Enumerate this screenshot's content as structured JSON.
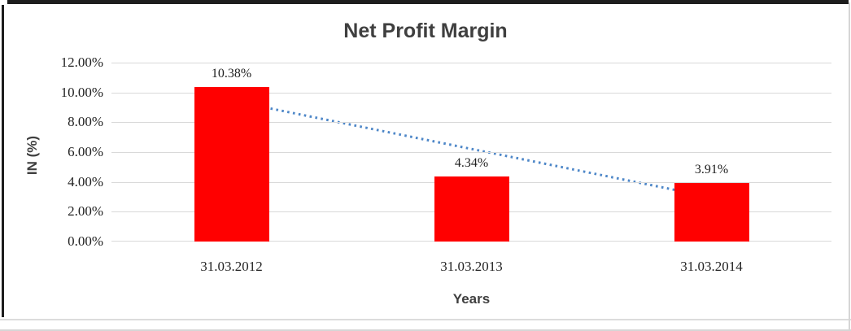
{
  "chart_data": {
    "type": "bar",
    "title": "Net Profit Margin",
    "xlabel": "Years",
    "ylabel": "IN (%)",
    "categories": [
      "31.03.2012",
      "31.03.2013",
      "31.03.2014"
    ],
    "values": [
      10.38,
      4.34,
      3.91
    ],
    "data_labels": [
      "10.38%",
      "4.34%",
      "3.91%"
    ],
    "yticks": [
      {
        "label": "0.00%",
        "value": 0
      },
      {
        "label": "2.00%",
        "value": 2
      },
      {
        "label": "4.00%",
        "value": 4
      },
      {
        "label": "6.00%",
        "value": 6
      },
      {
        "label": "8.00%",
        "value": 8
      },
      {
        "label": "10.00%",
        "value": 10
      },
      {
        "label": "12.00%",
        "value": 12
      }
    ],
    "ylim": [
      0,
      12
    ],
    "grid": true,
    "legend": "none",
    "colors": {
      "bar": "#ff0000",
      "trendline": "#4e87c8",
      "gridline": "#d9d9d9",
      "title_text": "#3f3f3f",
      "tick_text": "#1f1f1f"
    },
    "trendline": {
      "style": "dotted",
      "color": "#4e87c8",
      "start_value": 9.45,
      "end_value": 2.97
    }
  }
}
